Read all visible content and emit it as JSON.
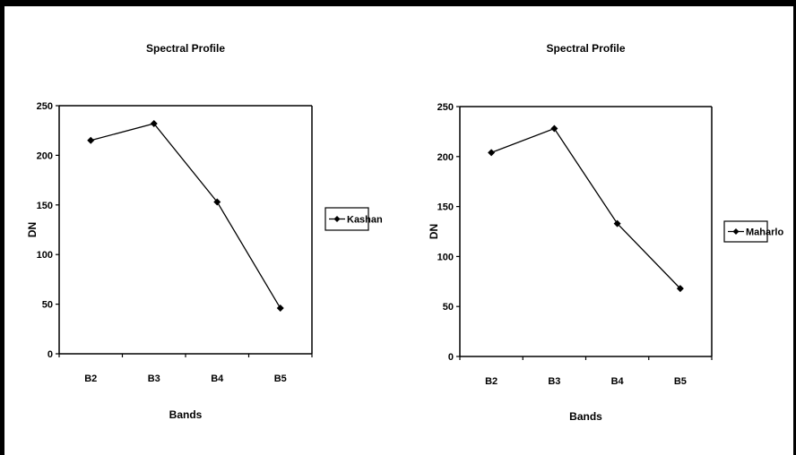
{
  "chart_data": [
    {
      "type": "line",
      "title": "Spectral Profile",
      "xlabel": "Bands",
      "ylabel": "DN",
      "categories": [
        "B2",
        "B3",
        "B4",
        "B5"
      ],
      "ylim": [
        0,
        250
      ],
      "yticks": [
        0,
        50,
        100,
        150,
        200,
        250
      ],
      "series": [
        {
          "name": "Kashan",
          "values": [
            215,
            232,
            153,
            46
          ]
        }
      ],
      "legend": "right",
      "grid": false
    },
    {
      "type": "line",
      "title": "Spectral Profile",
      "xlabel": "Bands",
      "ylabel": "DN",
      "categories": [
        "B2",
        "B3",
        "B4",
        "B5"
      ],
      "ylim": [
        0,
        250
      ],
      "yticks": [
        0,
        50,
        100,
        150,
        200,
        250
      ],
      "series": [
        {
          "name": "Maharlo",
          "values": [
            204,
            228,
            133,
            68
          ]
        }
      ],
      "legend": "right",
      "grid": false
    }
  ],
  "colors": {
    "line": "#000000",
    "marker": "#000000",
    "axis": "#000000"
  }
}
